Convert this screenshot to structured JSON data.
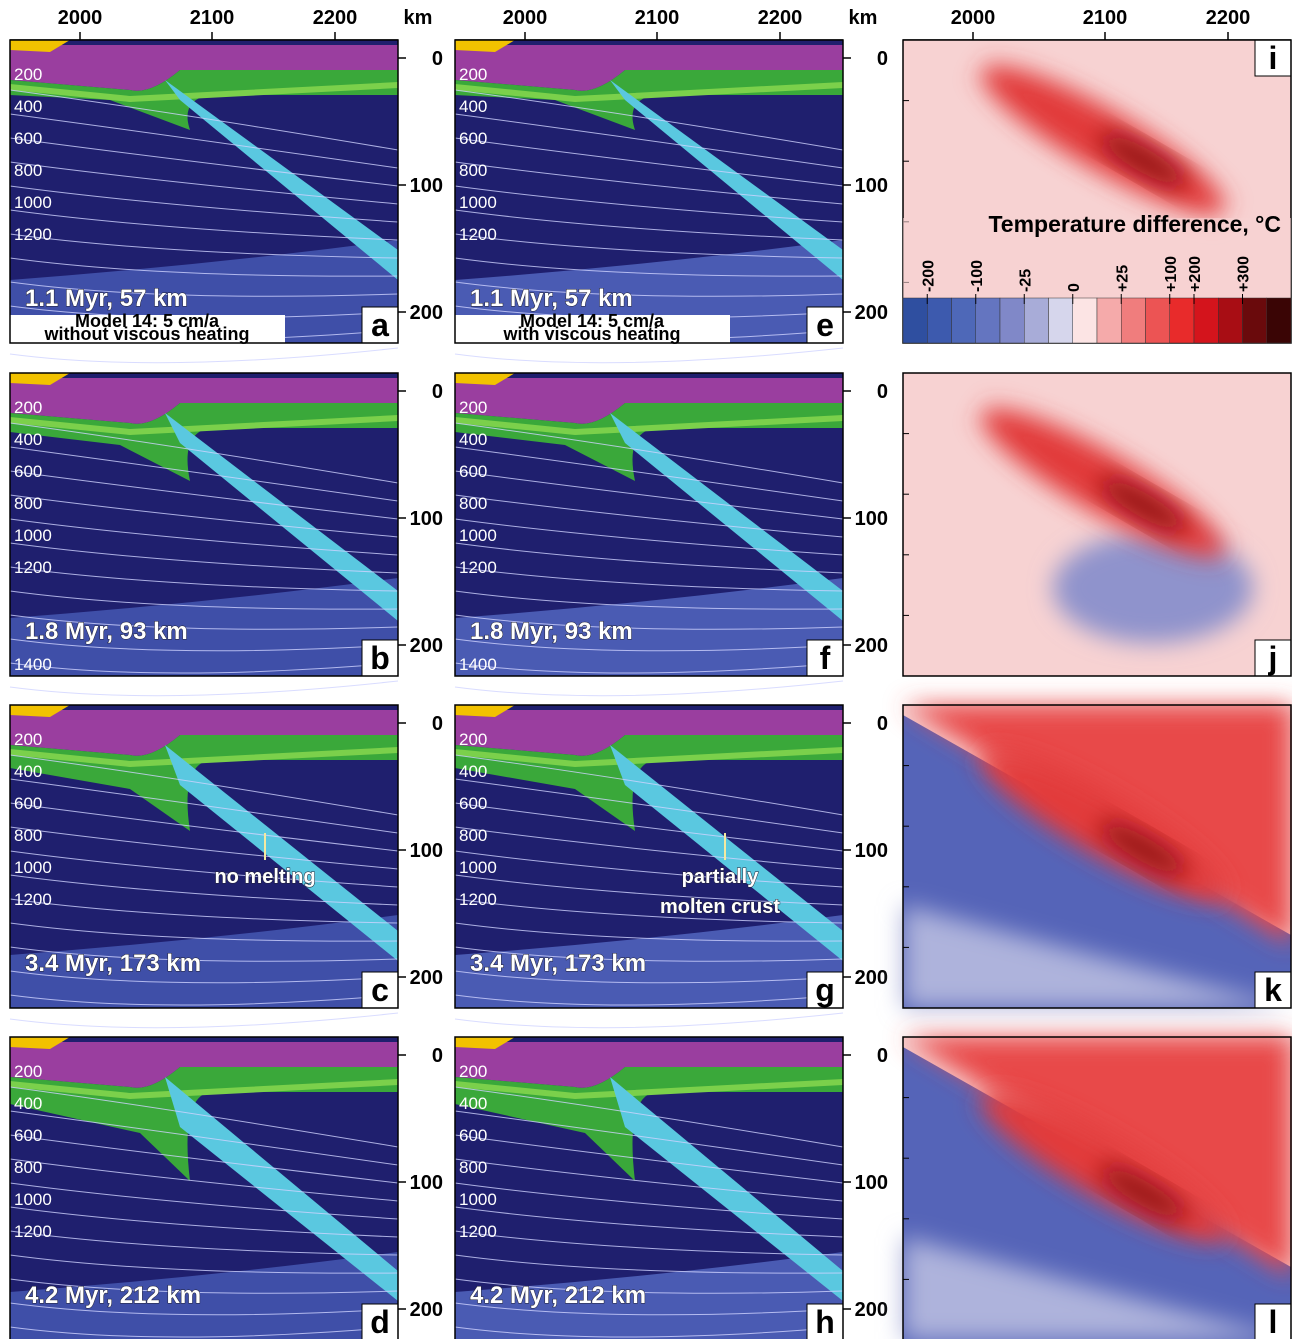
{
  "top_axis": {
    "ticks": [
      "2000",
      "2100",
      "2200"
    ],
    "unit": "km"
  },
  "depth_ticks": [
    "0",
    "100",
    "200"
  ],
  "colorbar": {
    "title": "Temperature difference, °C",
    "labels": [
      "-200",
      "-100",
      "-25",
      "0",
      "+25",
      "+100",
      "+200",
      "+300"
    ]
  },
  "rows": [
    {
      "left": {
        "letter": "a",
        "caption": "1.1 Myr, 57 km",
        "isotherms": [
          "200",
          "400",
          "600",
          "800",
          "1000",
          "1200"
        ],
        "model": "Model 14: 5 cm/a",
        "heating": "without viscous heating"
      },
      "middle": {
        "letter": "e",
        "caption": "1.1 Myr, 57 km",
        "isotherms": [
          "200",
          "400",
          "600",
          "800",
          "1000",
          "1200"
        ],
        "model": "Model 14: 5 cm/a",
        "heating": "with viscous heating"
      },
      "right": {
        "letter": "i"
      }
    },
    {
      "left": {
        "letter": "b",
        "caption": "1.8 Myr, 93 km",
        "isotherms": [
          "200",
          "400",
          "600",
          "800",
          "1000",
          "1200",
          "1400"
        ]
      },
      "middle": {
        "letter": "f",
        "caption": "1.8 Myr, 93 km",
        "isotherms": [
          "200",
          "400",
          "600",
          "800",
          "1000",
          "1200",
          "1400"
        ]
      },
      "right": {
        "letter": "j"
      }
    },
    {
      "left": {
        "letter": "c",
        "caption": "3.4 Myr, 173 km",
        "isotherms": [
          "200",
          "400",
          "600",
          "800",
          "1000",
          "1200"
        ],
        "annotation": [
          "no melting"
        ]
      },
      "middle": {
        "letter": "g",
        "caption": "3.4 Myr, 173 km",
        "isotherms": [
          "200",
          "400",
          "600",
          "800",
          "1000",
          "1200"
        ],
        "annotation": [
          "partially",
          "molten crust"
        ]
      },
      "right": {
        "letter": "k"
      }
    },
    {
      "left": {
        "letter": "d",
        "caption": "4.2 Myr, 212 km",
        "isotherms": [
          "200",
          "400",
          "600",
          "800",
          "1000",
          "1200"
        ]
      },
      "middle": {
        "letter": "h",
        "caption": "4.2 Myr, 212 km",
        "isotherms": [
          "200",
          "400",
          "600",
          "800",
          "1000",
          "1200"
        ]
      },
      "right": {
        "letter": "l"
      }
    }
  ]
}
